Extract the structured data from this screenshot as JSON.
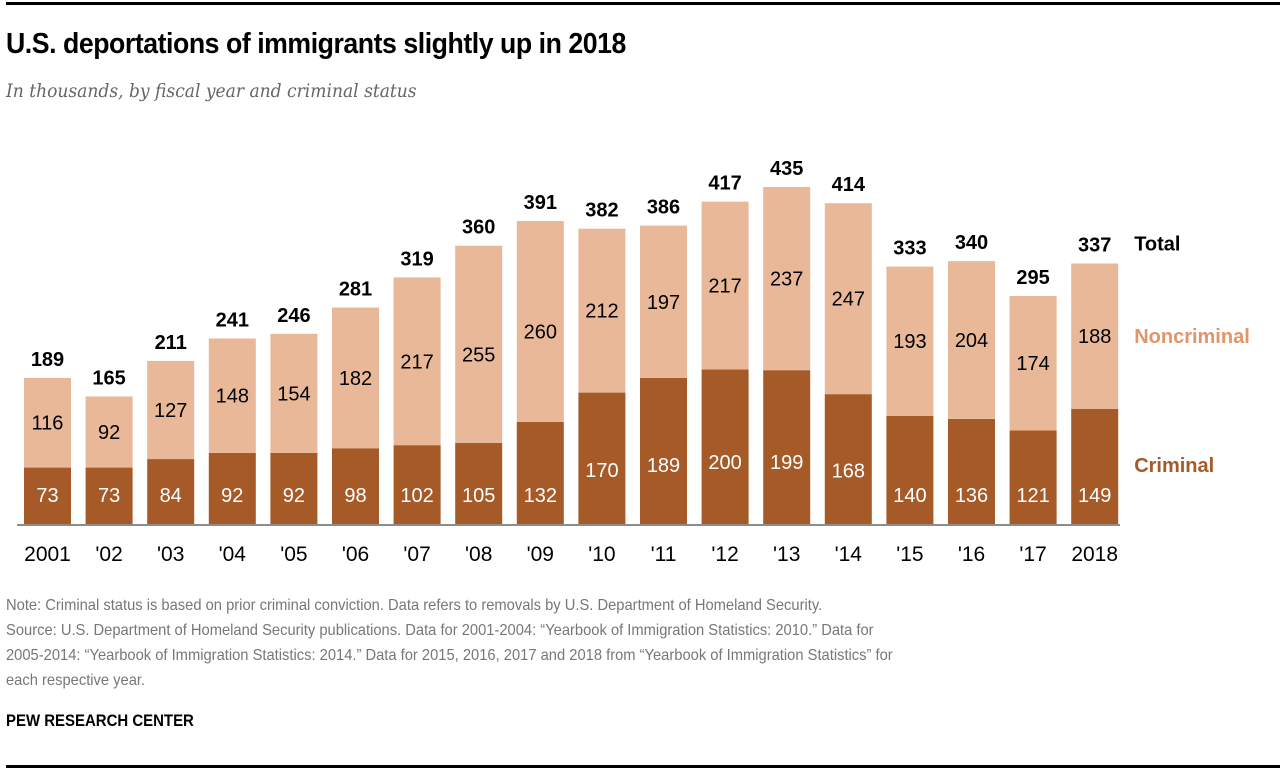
{
  "title": "U.S. deportations of immigrants slightly up in 2018",
  "subtitle": "In thousands, by fiscal year and criminal status",
  "notes": {
    "note": "Note: Criminal status is based on prior criminal conviction. Data refers to removals by U.S. Department of Homeland Security.",
    "source_lines": [
      "Source: U.S. Department of Homeland Security publications. Data for 2001-2004: “Yearbook of Immigration Statistics: 2010.” Data for",
      "2005-2014: “Yearbook of Immigration Statistics: 2014.” Data for 2015, 2016, 2017 and 2018 from “Yearbook of Immigration Statistics” for",
      "each respective year."
    ]
  },
  "brand": "PEW RESEARCH CENTER",
  "colors": {
    "criminal": "#a65a28",
    "noncriminal": "#e8b898",
    "noncriminal_label": "#e0956a",
    "baseline": "#8c8c8c"
  },
  "chart_data": {
    "type": "bar",
    "stacked": true,
    "title": "U.S. deportations of immigrants slightly up in 2018",
    "subtitle": "In thousands, by fiscal year and criminal status",
    "xlabel": "",
    "ylabel": "",
    "ylim": [
      0,
      450
    ],
    "grid": false,
    "legend_placement": "right (inline labels)",
    "categories": [
      "2001",
      "'02",
      "'03",
      "'04",
      "'05",
      "'06",
      "'07",
      "'08",
      "'09",
      "'10",
      "'11",
      "'12",
      "'13",
      "'14",
      "'15",
      "'16",
      "'17",
      "2018"
    ],
    "series": [
      {
        "name": "Criminal",
        "values": [
          73,
          73,
          84,
          92,
          92,
          98,
          102,
          105,
          132,
          170,
          189,
          200,
          199,
          168,
          140,
          136,
          121,
          149
        ]
      },
      {
        "name": "Noncriminal",
        "values": [
          116,
          92,
          127,
          148,
          154,
          182,
          217,
          255,
          260,
          212,
          197,
          217,
          237,
          247,
          193,
          204,
          174,
          188
        ]
      }
    ],
    "totals": [
      189,
      165,
      211,
      241,
      246,
      281,
      319,
      360,
      391,
      382,
      386,
      417,
      435,
      414,
      333,
      340,
      295,
      337
    ],
    "total_label": "Total"
  }
}
